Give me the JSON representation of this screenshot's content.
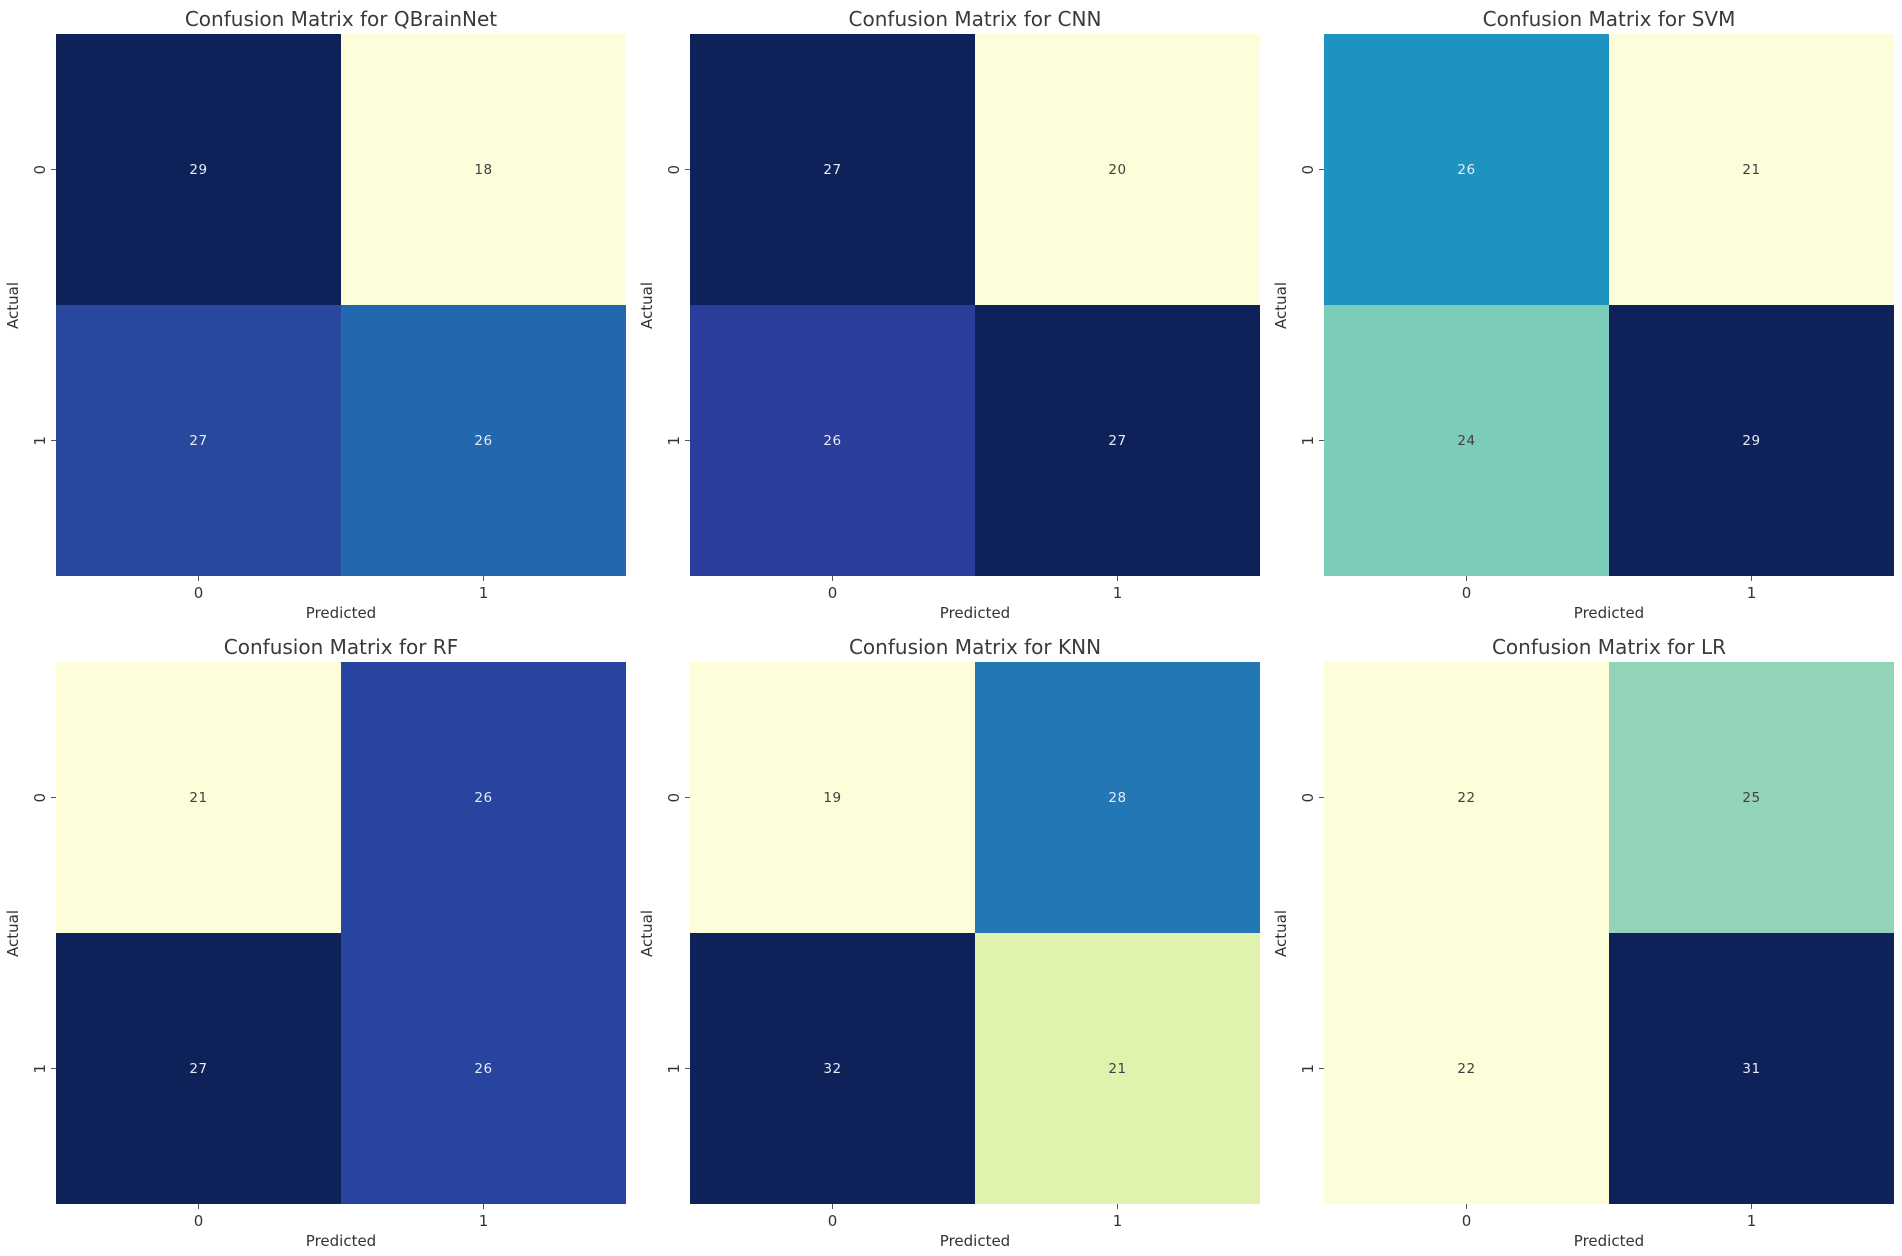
{
  "figure": {
    "background": "#ffffff",
    "rows": 2,
    "cols": 3,
    "colormap": "YlGnBu",
    "annot_light_color": "#e8ebf3",
    "annot_dark_color": "#404040",
    "axes_text_color": "#3a3a3a"
  },
  "chart_data": [
    {
      "type": "heatmap",
      "model": "QBrainNet",
      "title": "Confusion Matrix for QBrainNet",
      "xlabel": "Predicted",
      "ylabel": "Actual",
      "x_tick_labels": [
        "0",
        "1"
      ],
      "y_tick_labels": [
        "0",
        "1"
      ],
      "colormap": "YlGnBu",
      "legend": "none",
      "grid": false,
      "matrix": [
        [
          29,
          18
        ],
        [
          27,
          26
        ]
      ],
      "cells": [
        [
          {
            "value": "29",
            "bg": "#0e2158",
            "fg": "#e8ebf3"
          },
          {
            "value": "18",
            "bg": "#fdfdda",
            "fg": "#404040"
          }
        ],
        [
          {
            "value": "27",
            "bg": "#28489e",
            "fg": "#e8ebf3"
          },
          {
            "value": "26",
            "bg": "#2268ae",
            "fg": "#e8ebf3"
          }
        ]
      ]
    },
    {
      "type": "heatmap",
      "model": "CNN",
      "title": "Confusion Matrix for CNN",
      "xlabel": "Predicted",
      "ylabel": "Actual",
      "x_tick_labels": [
        "0",
        "1"
      ],
      "y_tick_labels": [
        "0",
        "1"
      ],
      "colormap": "YlGnBu",
      "legend": "none",
      "grid": false,
      "matrix": [
        [
          27,
          20
        ],
        [
          26,
          27
        ]
      ],
      "cells": [
        [
          {
            "value": "27",
            "bg": "#0e2158",
            "fg": "#e8ebf3"
          },
          {
            "value": "20",
            "bg": "#fdfdda",
            "fg": "#404040"
          }
        ],
        [
          {
            "value": "26",
            "bg": "#2b3e9c",
            "fg": "#e8ebf3"
          },
          {
            "value": "27",
            "bg": "#0e2158",
            "fg": "#e8ebf3"
          }
        ]
      ]
    },
    {
      "type": "heatmap",
      "model": "SVM",
      "title": "Confusion Matrix for SVM",
      "xlabel": "Predicted",
      "ylabel": "Actual",
      "x_tick_labels": [
        "0",
        "1"
      ],
      "y_tick_labels": [
        "0",
        "1"
      ],
      "colormap": "YlGnBu",
      "legend": "none",
      "grid": false,
      "matrix": [
        [
          26,
          21
        ],
        [
          24,
          29
        ]
      ],
      "cells": [
        [
          {
            "value": "26",
            "bg": "#1e92c1",
            "fg": "#e8ebf3"
          },
          {
            "value": "21",
            "bg": "#fdfdda",
            "fg": "#404040"
          }
        ],
        [
          {
            "value": "24",
            "bg": "#7cccba",
            "fg": "#404040"
          },
          {
            "value": "29",
            "bg": "#0e2158",
            "fg": "#e8ebf3"
          }
        ]
      ]
    },
    {
      "type": "heatmap",
      "model": "RF",
      "title": "Confusion Matrix for RF",
      "xlabel": "Predicted",
      "ylabel": "Actual",
      "x_tick_labels": [
        "0",
        "1"
      ],
      "y_tick_labels": [
        "0",
        "1"
      ],
      "colormap": "YlGnBu",
      "legend": "none",
      "grid": false,
      "matrix": [
        [
          21,
          26
        ],
        [
          27,
          26
        ]
      ],
      "cells": [
        [
          {
            "value": "21",
            "bg": "#fdfdda",
            "fg": "#404040"
          },
          {
            "value": "26",
            "bg": "#27459f",
            "fg": "#e8ebf3"
          }
        ],
        [
          {
            "value": "27",
            "bg": "#0e2158",
            "fg": "#e8ebf3"
          },
          {
            "value": "26",
            "bg": "#27459f",
            "fg": "#e8ebf3"
          }
        ]
      ]
    },
    {
      "type": "heatmap",
      "model": "KNN",
      "title": "Confusion Matrix for KNN",
      "xlabel": "Predicted",
      "ylabel": "Actual",
      "x_tick_labels": [
        "0",
        "1"
      ],
      "y_tick_labels": [
        "0",
        "1"
      ],
      "colormap": "YlGnBu",
      "legend": "none",
      "grid": false,
      "matrix": [
        [
          19,
          28
        ],
        [
          32,
          21
        ]
      ],
      "cells": [
        [
          {
            "value": "19",
            "bg": "#fdfdda",
            "fg": "#404040"
          },
          {
            "value": "28",
            "bg": "#2277b4",
            "fg": "#e8ebf3"
          }
        ],
        [
          {
            "value": "32",
            "bg": "#0e2158",
            "fg": "#e8ebf3"
          },
          {
            "value": "21",
            "bg": "#e0f3ae",
            "fg": "#404040"
          }
        ]
      ]
    },
    {
      "type": "heatmap",
      "model": "LR",
      "title": "Confusion Matrix for LR",
      "xlabel": "Predicted",
      "ylabel": "Actual",
      "x_tick_labels": [
        "0",
        "1"
      ],
      "y_tick_labels": [
        "0",
        "1"
      ],
      "colormap": "YlGnBu",
      "legend": "none",
      "grid": false,
      "matrix": [
        [
          22,
          25
        ],
        [
          22,
          31
        ]
      ],
      "cells": [
        [
          {
            "value": "22",
            "bg": "#fdfdda",
            "fg": "#404040"
          },
          {
            "value": "25",
            "bg": "#93d4b8",
            "fg": "#404040"
          }
        ],
        [
          {
            "value": "22",
            "bg": "#fdfdda",
            "fg": "#404040"
          },
          {
            "value": "31",
            "bg": "#0e2158",
            "fg": "#e8ebf3"
          }
        ]
      ]
    }
  ]
}
